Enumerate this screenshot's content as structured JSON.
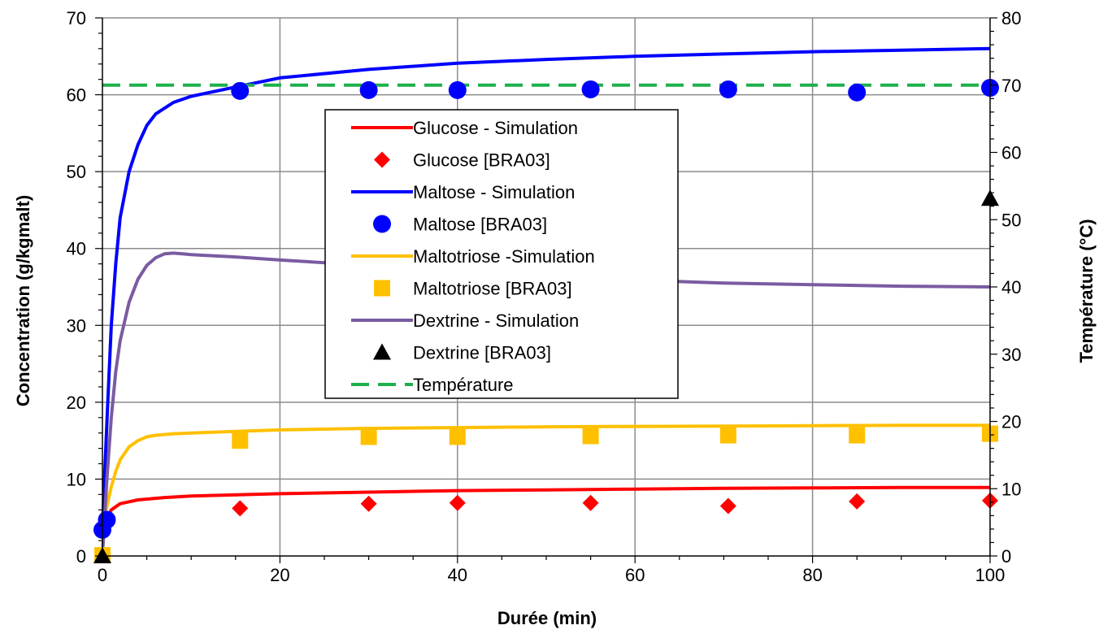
{
  "chart_data": {
    "type": "scatter",
    "xlabel": "Durée (min)",
    "ylabel": "Concentration  (g/kgmalt)",
    "y2label": "Température (°C)",
    "xlim": [
      0,
      100
    ],
    "ylim": [
      0,
      70
    ],
    "y2lim": [
      0,
      80
    ],
    "x_ticks": [
      0,
      20,
      40,
      60,
      80,
      100
    ],
    "y_ticks": [
      0,
      10,
      20,
      30,
      40,
      50,
      60,
      70
    ],
    "y2_ticks": [
      0,
      10,
      20,
      30,
      40,
      50,
      60,
      70,
      80
    ],
    "grid": true,
    "legend_position": "center",
    "series": [
      {
        "name": "Glucose - Simulation",
        "kind": "line",
        "color": "#ff0000",
        "dash": "solid",
        "axis": "left",
        "x": [
          0,
          0.5,
          1,
          2,
          4,
          7,
          10,
          20,
          30,
          40,
          50,
          60,
          70,
          80,
          90,
          100
        ],
        "y": [
          3.0,
          5.0,
          6.0,
          6.8,
          7.3,
          7.6,
          7.8,
          8.1,
          8.3,
          8.5,
          8.6,
          8.7,
          8.8,
          8.85,
          8.9,
          8.9
        ]
      },
      {
        "name": "Glucose [BRA03]",
        "kind": "marker",
        "marker": "diamond",
        "color": "#ff0000",
        "axis": "left",
        "x": [
          15.5,
          30,
          40,
          55,
          70.5,
          85,
          100
        ],
        "y": [
          6.2,
          6.8,
          6.9,
          6.9,
          6.5,
          7.1,
          7.2
        ]
      },
      {
        "name": "Maltose - Simulation",
        "kind": "line",
        "color": "#0000ff",
        "dash": "solid",
        "axis": "left",
        "x": [
          0,
          0.3,
          0.6,
          1,
          1.5,
          2,
          3,
          4,
          5,
          6,
          8,
          10,
          15,
          20,
          30,
          40,
          50,
          60,
          70,
          80,
          90,
          100
        ],
        "y": [
          3.4,
          12,
          20,
          30,
          38,
          44,
          50,
          53.5,
          56,
          57.5,
          59,
          59.8,
          61.0,
          62.2,
          63.3,
          64.1,
          64.6,
          65.0,
          65.3,
          65.6,
          65.8,
          66.0
        ]
      },
      {
        "name": "Maltose [BRA03]",
        "kind": "marker",
        "marker": "circle",
        "color": "#0000ff",
        "axis": "left",
        "x": [
          0,
          0.5,
          15.5,
          30,
          40,
          55,
          70.5,
          85,
          100
        ],
        "y": [
          3.4,
          4.7,
          60.5,
          60.6,
          60.6,
          60.7,
          60.7,
          60.3,
          60.9
        ]
      },
      {
        "name": "Maltotriose -Simulation",
        "kind": "line",
        "color": "#ffc000",
        "dash": "solid",
        "axis": "left",
        "x": [
          0,
          0.5,
          1,
          1.5,
          2,
          3,
          4,
          5,
          6,
          8,
          10,
          20,
          30,
          40,
          50,
          60,
          70,
          80,
          90,
          100
        ],
        "y": [
          4.0,
          6.5,
          9,
          11,
          12.5,
          14.2,
          15.0,
          15.5,
          15.7,
          15.9,
          16.0,
          16.4,
          16.6,
          16.7,
          16.8,
          16.85,
          16.9,
          16.95,
          17.0,
          17.0
        ]
      },
      {
        "name": "Maltotriose [BRA03]",
        "kind": "marker",
        "marker": "square",
        "color": "#ffc000",
        "axis": "left",
        "x": [
          0,
          15.5,
          30,
          40,
          55,
          70.5,
          85,
          100
        ],
        "y": [
          0.1,
          15.0,
          15.5,
          15.5,
          15.6,
          15.7,
          15.7,
          15.9
        ]
      },
      {
        "name": "Dextrine - Simulation",
        "kind": "line",
        "color": "#7a5ba1",
        "dash": "solid",
        "axis": "left",
        "x": [
          0,
          0.5,
          1,
          1.5,
          2,
          3,
          4,
          5,
          6,
          7,
          8,
          9,
          10,
          15,
          20,
          30,
          40,
          50,
          60,
          70,
          80,
          90,
          100
        ],
        "y": [
          0,
          10,
          18,
          24,
          28,
          33,
          36,
          37.8,
          38.8,
          39.3,
          39.4,
          39.3,
          39.2,
          38.9,
          38.5,
          37.8,
          37.0,
          36.4,
          35.9,
          35.5,
          35.3,
          35.1,
          35.0
        ]
      },
      {
        "name": "Dextrine [BRA03]",
        "kind": "marker",
        "marker": "triangle",
        "color": "#000000",
        "axis": "left",
        "x": [
          0,
          100
        ],
        "y": [
          0,
          46.5
        ]
      },
      {
        "name": "Température",
        "kind": "line",
        "color": "#1db04c",
        "dash": "dashed",
        "axis": "right",
        "x": [
          0,
          100
        ],
        "y": [
          70,
          70
        ]
      }
    ]
  }
}
